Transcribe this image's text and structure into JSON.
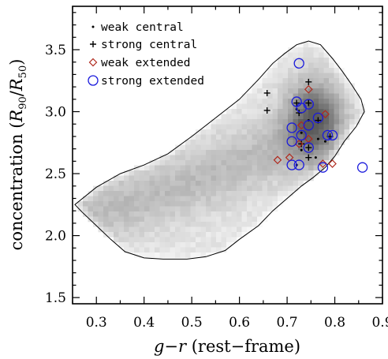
{
  "chart_data": {
    "type": "scatter",
    "xlabel": "g−r (rest−frame)",
    "ylabel": "concentration (R90/R50)",
    "ylabel_parts": {
      "pre": "concentration (",
      "r1": "R",
      "s1": "90",
      "slash": "/",
      "r2": "R",
      "s2": "50",
      "post": ")"
    },
    "xlabel_parts": {
      "g": "g",
      "minus": "−",
      "r": "r",
      "rest": " (rest−frame)"
    },
    "xlim": [
      0.25,
      0.9
    ],
    "ylim": [
      1.45,
      3.85
    ],
    "xticks": [
      0.3,
      0.4,
      0.5,
      0.6,
      0.7,
      0.8,
      0.9
    ],
    "xtick_labels": [
      "0.3",
      "0.4",
      "0.5",
      "0.6",
      "0.7",
      "0.8",
      "0.9"
    ],
    "yticks": [
      1.5,
      2.0,
      2.5,
      3.0,
      3.5
    ],
    "ytick_labels": [
      "1.5",
      "2.0",
      "2.5",
      "3.0",
      "3.5"
    ],
    "legend_position": "top-left",
    "legend": [
      {
        "key": "weak_central",
        "label": "weak central",
        "marker": "dot"
      },
      {
        "key": "strong_central",
        "label": "strong central",
        "marker": "plus"
      },
      {
        "key": "weak_extended",
        "label": "weak extended",
        "marker": "diamond"
      },
      {
        "key": "strong_extended",
        "label": "strong extended",
        "marker": "circle"
      }
    ],
    "colors": {
      "diamond": "#b02a1e",
      "circle": "#1a1adc",
      "contour": "#000000"
    },
    "contour": [
      [
        0.255,
        2.25
      ],
      [
        0.3,
        2.39
      ],
      [
        0.35,
        2.5
      ],
      [
        0.4,
        2.57
      ],
      [
        0.45,
        2.66
      ],
      [
        0.5,
        2.8
      ],
      [
        0.55,
        2.95
      ],
      [
        0.6,
        3.1
      ],
      [
        0.64,
        3.26
      ],
      [
        0.67,
        3.39
      ],
      [
        0.695,
        3.47
      ],
      [
        0.72,
        3.54
      ],
      [
        0.745,
        3.57
      ],
      [
        0.77,
        3.54
      ],
      [
        0.795,
        3.43
      ],
      [
        0.815,
        3.33
      ],
      [
        0.835,
        3.22
      ],
      [
        0.855,
        3.1
      ],
      [
        0.862,
        3.0
      ],
      [
        0.845,
        2.88
      ],
      [
        0.82,
        2.76
      ],
      [
        0.8,
        2.64
      ],
      [
        0.78,
        2.55
      ],
      [
        0.755,
        2.47
      ],
      [
        0.73,
        2.4
      ],
      [
        0.7,
        2.3
      ],
      [
        0.67,
        2.2
      ],
      [
        0.64,
        2.08
      ],
      [
        0.6,
        1.97
      ],
      [
        0.57,
        1.88
      ],
      [
        0.53,
        1.83
      ],
      [
        0.49,
        1.81
      ],
      [
        0.44,
        1.81
      ],
      [
        0.4,
        1.82
      ],
      [
        0.36,
        1.87
      ],
      [
        0.33,
        1.97
      ],
      [
        0.3,
        2.08
      ],
      [
        0.27,
        2.19
      ],
      [
        0.255,
        2.25
      ]
    ],
    "density_ridge": [
      [
        0.3,
        2.2
      ],
      [
        0.35,
        2.25
      ],
      [
        0.4,
        2.3
      ],
      [
        0.45,
        2.36
      ],
      [
        0.5,
        2.43
      ],
      [
        0.55,
        2.5
      ],
      [
        0.6,
        2.58
      ],
      [
        0.65,
        2.66
      ],
      [
        0.7,
        2.76
      ],
      [
        0.74,
        2.86
      ],
      [
        0.76,
        2.93
      ]
    ],
    "density_peak": {
      "x": 0.755,
      "y": 2.92
    },
    "series": [
      {
        "name": "weak central",
        "marker": "dot",
        "points": [
          [
            0.72,
            3.02
          ],
          [
            0.745,
            2.93
          ],
          [
            0.73,
            2.83
          ],
          [
            0.765,
            2.78
          ],
          [
            0.73,
            2.69
          ],
          [
            0.72,
            2.57
          ],
          [
            0.76,
            2.63
          ],
          [
            0.78,
            2.76
          ]
        ]
      },
      {
        "name": "strong central",
        "marker": "plus",
        "points": [
          [
            0.658,
            3.15
          ],
          [
            0.658,
            3.01
          ],
          [
            0.745,
            3.24
          ],
          [
            0.725,
            2.99
          ],
          [
            0.745,
            3.07
          ],
          [
            0.73,
            2.74
          ],
          [
            0.745,
            2.71
          ],
          [
            0.745,
            2.63
          ],
          [
            0.72,
            3.07
          ],
          [
            0.765,
            2.93
          ],
          [
            0.79,
            2.8
          ]
        ]
      },
      {
        "name": "weak extended",
        "marker": "diamond",
        "points": [
          [
            0.745,
            3.18
          ],
          [
            0.68,
            2.61
          ],
          [
            0.705,
            2.63
          ],
          [
            0.725,
            2.74
          ],
          [
            0.73,
            2.89
          ],
          [
            0.78,
            2.98
          ],
          [
            0.775,
            2.58
          ],
          [
            0.795,
            2.58
          ],
          [
            0.745,
            2.78
          ]
        ]
      },
      {
        "name": "strong extended",
        "marker": "circle",
        "points": [
          [
            0.725,
            3.39
          ],
          [
            0.72,
            3.08
          ],
          [
            0.745,
            3.06
          ],
          [
            0.73,
            3.03
          ],
          [
            0.765,
            2.95
          ],
          [
            0.745,
            2.89
          ],
          [
            0.71,
            2.87
          ],
          [
            0.73,
            2.81
          ],
          [
            0.785,
            2.81
          ],
          [
            0.795,
            2.81
          ],
          [
            0.71,
            2.76
          ],
          [
            0.745,
            2.71
          ],
          [
            0.71,
            2.57
          ],
          [
            0.725,
            2.57
          ],
          [
            0.775,
            2.55
          ],
          [
            0.858,
            2.55
          ]
        ]
      }
    ]
  }
}
